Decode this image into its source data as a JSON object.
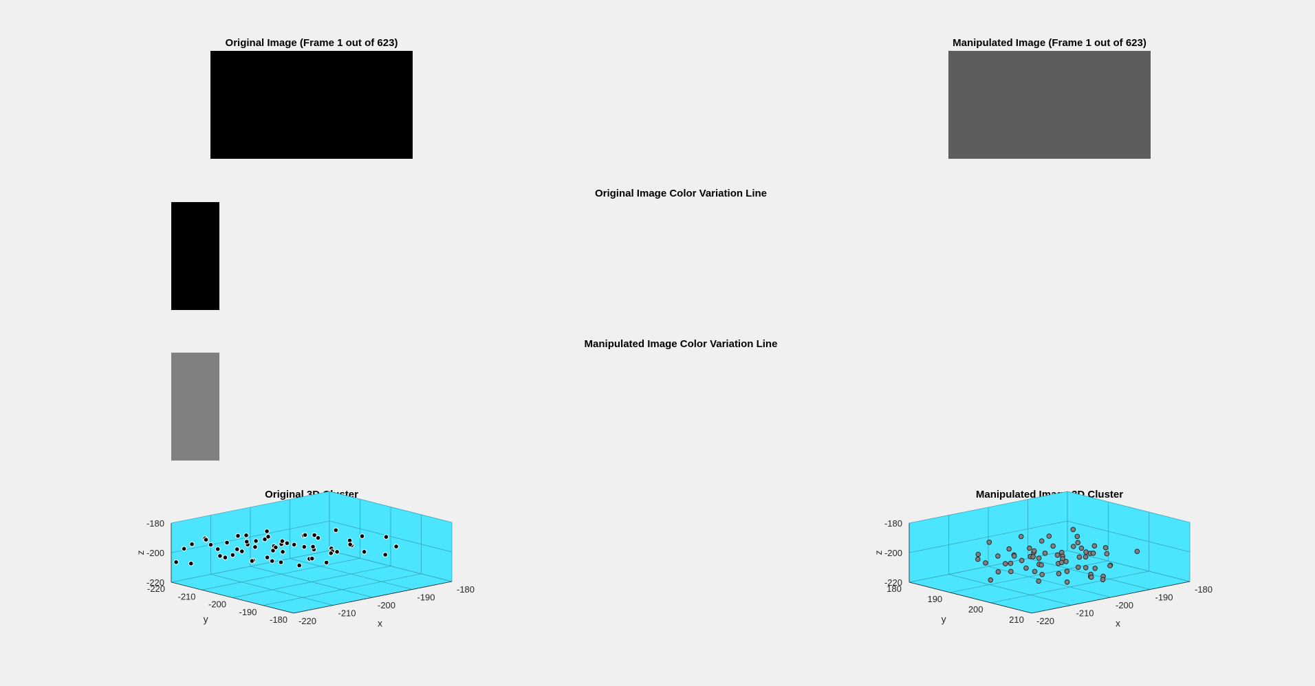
{
  "titles": {
    "original_image": "Original Image (Frame 1 out of 623)",
    "manipulated_image": "Manipulated Image (Frame 1 out of 623)",
    "original_color_line": "Original Image Color Variation Line",
    "manipulated_color_line": "Manipulated Image Color Variation Line",
    "original_cluster": "Original 3D Cluster",
    "manipulated_cluster": "Manipulated Image 3D Cluster"
  },
  "colors": {
    "background": "#f0f0f0",
    "original_image": "#000000",
    "manipulated_image": "#5c5e5c",
    "original_swatch": "#000000",
    "manipulated_swatch": "#808080",
    "axes_face": "#4ce5ff",
    "original_marker_fill": "#000000",
    "original_marker_edge": "#ffffff",
    "manipulated_marker_fill": "#808080",
    "manipulated_marker_edge": "#262626"
  },
  "chart_data": [
    {
      "type": "scatter",
      "name": "original-3d-cluster",
      "title": "Original 3D Cluster",
      "xlabel": "x",
      "ylabel": "y",
      "zlabel": "z",
      "xlim": [
        -220,
        -180
      ],
      "ylim": [
        -220,
        -180
      ],
      "zlim": [
        -220,
        -180
      ],
      "xticks": [
        -220,
        -210,
        -200,
        -190,
        -180
      ],
      "yticks": [
        -220,
        -210,
        -200,
        -190,
        -180
      ],
      "zticks": [
        -220,
        -200,
        -180
      ],
      "grid": true,
      "points": [
        [
          -190,
          -212,
          -200
        ],
        [
          -185,
          -195,
          -195
        ],
        [
          -195,
          -200,
          -200
        ],
        [
          -192,
          -202,
          -205
        ],
        [
          -198,
          -205,
          -200
        ],
        [
          -200,
          -208,
          -198
        ],
        [
          -202,
          -210,
          -203
        ],
        [
          -205,
          -212,
          -200
        ],
        [
          -207,
          -210,
          -207
        ],
        [
          -203,
          -206,
          -196
        ],
        [
          -199,
          -202,
          -206
        ],
        [
          -196,
          -203,
          -194
        ],
        [
          -194,
          -207,
          -205
        ],
        [
          -201,
          -214,
          -198
        ],
        [
          -204,
          -209,
          -192
        ],
        [
          -206,
          -215,
          -204
        ],
        [
          -209,
          -216,
          -197
        ],
        [
          -211,
          -214,
          -205
        ],
        [
          -213,
          -218,
          -193
        ],
        [
          -208,
          -211,
          -190
        ],
        [
          -197,
          -199,
          -208
        ],
        [
          -193,
          -196,
          -197
        ],
        [
          -200,
          -204,
          -211
        ],
        [
          -202,
          -207,
          -195
        ],
        [
          -205,
          -213,
          -210
        ],
        [
          -190,
          -205,
          -193
        ],
        [
          -188,
          -203,
          -200
        ],
        [
          -195,
          -209,
          -196
        ],
        [
          -198,
          -212,
          -207
        ],
        [
          -203,
          -217,
          -202
        ],
        [
          -206,
          -218,
          -208
        ],
        [
          -210,
          -220,
          -200
        ],
        [
          -215,
          -220,
          -210
        ],
        [
          -212,
          -219,
          -195
        ],
        [
          -207,
          -215,
          -193
        ],
        [
          -200,
          -210,
          -212
        ],
        [
          -196,
          -205,
          -209
        ],
        [
          -194,
          -201,
          -203
        ],
        [
          -191,
          -199,
          -199
        ],
        [
          -189,
          -197,
          -204
        ],
        [
          -201,
          -211,
          -201
        ],
        [
          -204,
          -213,
          -197
        ],
        [
          -208,
          -214,
          -201
        ],
        [
          -210,
          -217,
          -206
        ],
        [
          -203,
          -209,
          -209
        ],
        [
          -199,
          -207,
          -199
        ],
        [
          -197,
          -206,
          -193
        ],
        [
          -192,
          -204,
          -207
        ],
        [
          -205,
          -208,
          -205
        ],
        [
          -202,
          -212,
          -191
        ],
        [
          -186,
          -194,
          -206
        ],
        [
          -184,
          -193,
          -201
        ],
        [
          -188,
          -199,
          -195
        ],
        [
          -195,
          -206,
          -202
        ],
        [
          -199,
          -213,
          -204
        ],
        [
          -204,
          -216,
          -199
        ],
        [
          -209,
          -219,
          -203
        ],
        [
          -214,
          -221,
          -198
        ],
        [
          -218,
          -221,
          -208
        ],
        [
          -216,
          -221,
          -200
        ]
      ]
    },
    {
      "type": "scatter",
      "name": "manipulated-3d-cluster",
      "title": "Manipulated Image 3D Cluster",
      "xlabel": "x",
      "ylabel": "y",
      "zlabel": "z",
      "xlim": [
        -220,
        -180
      ],
      "ylim": [
        180,
        210
      ],
      "zlim": [
        -220,
        -180
      ],
      "xticks": [
        -220,
        -210,
        -200,
        -190,
        -180
      ],
      "yticks": [
        180,
        190,
        200,
        210
      ],
      "zticks": [
        -220,
        -200,
        -180
      ],
      "grid": true,
      "points": [
        [
          -205,
          202,
          -200
        ],
        [
          -200,
          198,
          -198
        ],
        [
          -198,
          195,
          -203
        ],
        [
          -203,
          193,
          -197
        ],
        [
          -208,
          197,
          -205
        ],
        [
          -210,
          200,
          -194
        ],
        [
          -212,
          203,
          -201
        ],
        [
          -207,
          205,
          -192
        ],
        [
          -202,
          207,
          -207
        ],
        [
          -199,
          204,
          -195
        ],
        [
          -196,
          200,
          -209
        ],
        [
          -194,
          197,
          -199
        ],
        [
          -197,
          191,
          -205
        ],
        [
          -201,
          189,
          -193
        ],
        [
          -206,
          190,
          -208
        ],
        [
          -211,
          193,
          -198
        ],
        [
          -214,
          196,
          -205
        ],
        [
          -215,
          200,
          -196
        ],
        [
          -213,
          205,
          -190
        ],
        [
          -209,
          208,
          -199
        ],
        [
          -204,
          209,
          -203
        ],
        [
          -200,
          206,
          -188
        ],
        [
          -198,
          202,
          -196
        ],
        [
          -195,
          199,
          -203
        ],
        [
          -193,
          195,
          -193
        ],
        [
          -196,
          192,
          -200
        ],
        [
          -199,
          190,
          -207
        ],
        [
          -203,
          188,
          -201
        ],
        [
          -207,
          187,
          -195
        ],
        [
          -210,
          189,
          -206
        ],
        [
          -214,
          191,
          -200
        ],
        [
          -217,
          194,
          -193
        ],
        [
          -218,
          198,
          -207
        ],
        [
          -217,
          202,
          -199
        ],
        [
          -214,
          206,
          -193
        ],
        [
          -210,
          209,
          -205
        ],
        [
          -205,
          211,
          -197
        ],
        [
          -201,
          210,
          -190
        ],
        [
          -197,
          207,
          -202
        ],
        [
          -194,
          204,
          -206
        ],
        [
          -192,
          201,
          -197
        ],
        [
          -191,
          197,
          -204
        ],
        [
          -193,
          194,
          -189
        ],
        [
          -196,
          191,
          -194
        ],
        [
          -200,
          193,
          -210
        ],
        [
          -204,
          195,
          -198
        ],
        [
          -208,
          199,
          -192
        ],
        [
          -211,
          203,
          -208
        ],
        [
          -209,
          206,
          -202
        ],
        [
          -206,
          204,
          -195
        ],
        [
          -202,
          201,
          -201
        ],
        [
          -199,
          197,
          -206
        ],
        [
          -203,
          196,
          -190
        ],
        [
          -206,
          194,
          -203
        ],
        [
          -209,
          195,
          -197
        ],
        [
          -212,
          198,
          -194
        ],
        [
          -206,
          199,
          -209
        ],
        [
          -201,
          203,
          -204
        ],
        [
          -198,
          200,
          -191
        ],
        [
          -195,
          196,
          -198
        ],
        [
          -205,
          213,
          -201
        ],
        [
          -208,
          213,
          -200
        ],
        [
          -183,
          200,
          -205
        ],
        [
          -210,
          212,
          -186
        ],
        [
          -202,
          210,
          -207
        ]
      ]
    }
  ]
}
